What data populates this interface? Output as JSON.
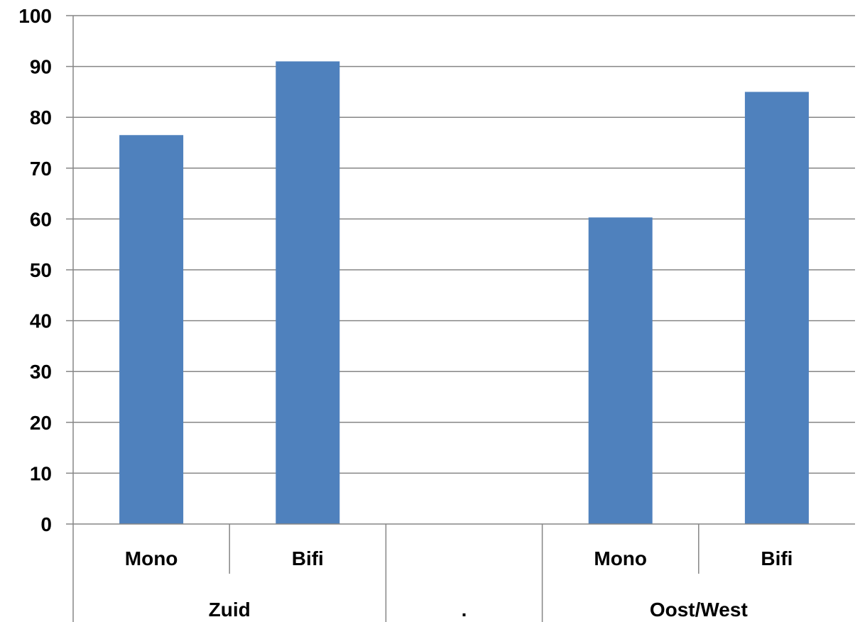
{
  "chart_data": {
    "type": "bar",
    "groups": [
      {
        "label": "Zuid",
        "categories": [
          "Mono",
          "Bifi"
        ]
      },
      {
        "label": ".",
        "categories": [
          ""
        ]
      },
      {
        "label": "Oost/West",
        "categories": [
          "Mono",
          "Bifi"
        ]
      }
    ],
    "categories": [
      "Mono",
      "Bifi",
      "",
      "Mono",
      "Bifi"
    ],
    "values": [
      76.5,
      91,
      null,
      60.3,
      85
    ],
    "ylim": [
      0,
      100
    ],
    "yticks": [
      "0",
      "10",
      "20",
      "30",
      "40",
      "50",
      "60",
      "70",
      "80",
      "90",
      "100"
    ],
    "grid": true,
    "bar_color": "#4F81BD",
    "grid_color": "#868686"
  }
}
